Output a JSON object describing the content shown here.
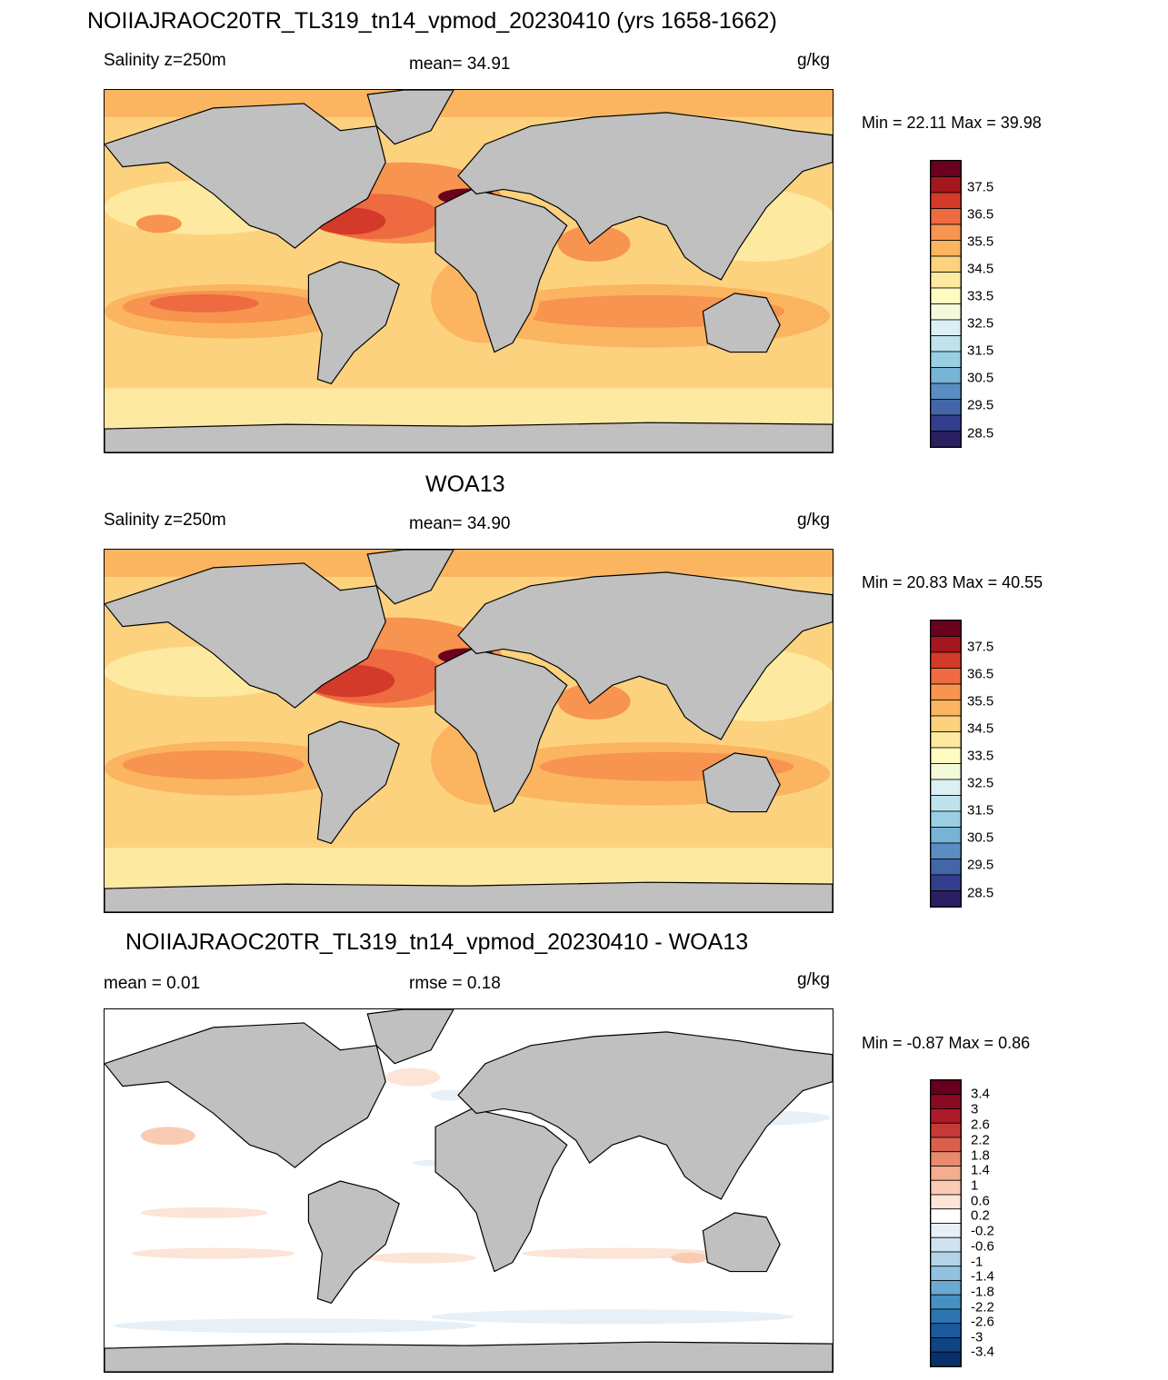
{
  "panels": [
    {
      "title": "NOIIAJRAOC20TR_TL319_tn14_vpmod_20230410 (yrs 1658-1662)",
      "left_label": "Salinity z=250m",
      "center_label": "mean=  34.91",
      "units": "g/kg",
      "minmax": "Min =  22.11 Max =  39.98",
      "colorbar_labels": [
        "37.5",
        "36.5",
        "35.5",
        "34.5",
        "33.5",
        "32.5",
        "31.5",
        "30.5",
        "29.5",
        "28.5"
      ]
    },
    {
      "title": "WOA13",
      "left_label": "Salinity z=250m",
      "center_label": "mean=  34.90",
      "units": "g/kg",
      "minmax": "Min =  20.83 Max =  40.55",
      "colorbar_labels": [
        "37.5",
        "36.5",
        "35.5",
        "34.5",
        "33.5",
        "32.5",
        "31.5",
        "30.5",
        "29.5",
        "28.5"
      ]
    },
    {
      "title": "NOIIAJRAOC20TR_TL319_tn14_vpmod_20230410 - WOA13",
      "left_label": "mean =   0.01",
      "center_label": "rmse =   0.18",
      "units": "g/kg",
      "minmax": "Min =  -0.87 Max =   0.86",
      "colorbar_labels": [
        "3.4",
        "3",
        "2.6",
        "2.2",
        "1.8",
        "1.4",
        "1",
        "0.6",
        "0.2",
        "-0.2",
        "-0.6",
        "-1",
        "-1.4",
        "-1.8",
        "-2.2",
        "-2.6",
        "-3",
        "-3.4"
      ]
    }
  ],
  "colors": {
    "land": "#c0c0c0",
    "salinity_scale": [
      "#6b001f",
      "#a4171f",
      "#d43a2a",
      "#ee6a40",
      "#f7944f",
      "#fbb460",
      "#fdd27e",
      "#fee9a0",
      "#fffbc1",
      "#f3fad9",
      "#dcf0f4",
      "#bfe2ed",
      "#99cee3",
      "#77b3d5",
      "#5a8ec2",
      "#4366a8",
      "#333f8c",
      "#2b1f62"
    ],
    "diff_scale": [
      "#67001f",
      "#8c0a22",
      "#ad1b29",
      "#c53a36",
      "#d8604d",
      "#e98a6d",
      "#f4ad90",
      "#f9cbb3",
      "#fce4d6",
      "#ffffff",
      "#e6f0f6",
      "#cfe3ef",
      "#b3d4e8",
      "#92c2df",
      "#6aa9d1",
      "#4690c3",
      "#2c74b2",
      "#1b5a9c",
      "#0f4484",
      "#08306b"
    ]
  }
}
